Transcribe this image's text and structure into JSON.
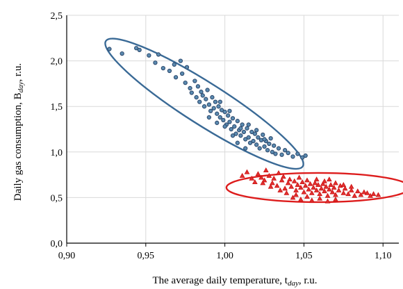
{
  "chart_data": {
    "type": "scatter",
    "title": "",
    "xlabel": "The average daily temperature, t",
    "xlabel_sub": "day",
    "xlabel_unit": ", r.u.",
    "ylabel": "Daily gas consumption, B",
    "ylabel_sub": "day",
    "ylabel_unit": ", r.u.",
    "xlim": [
      0.9,
      1.11
    ],
    "ylim": [
      0.0,
      2.5
    ],
    "xticks": [
      "0,90",
      "0,95",
      "1,00",
      "1,05",
      "1,10"
    ],
    "xtick_values": [
      0.9,
      0.95,
      1.0,
      1.05,
      1.1
    ],
    "yticks": [
      "0,0",
      "0,5",
      "1,0",
      "1,5",
      "2,0",
      "2,5"
    ],
    "ytick_values": [
      0.0,
      0.5,
      1.0,
      1.5,
      2.0,
      2.5
    ],
    "grid": true,
    "series": [
      {
        "marker": "circle",
        "color": "#2e4a6e",
        "fill": "#5b8bb0",
        "points": [
          [
            0.927,
            2.13
          ],
          [
            0.935,
            2.08
          ],
          [
            0.944,
            2.14
          ],
          [
            0.946,
            2.12
          ],
          [
            0.952,
            2.06
          ],
          [
            0.958,
            2.07
          ],
          [
            0.956,
            1.98
          ],
          [
            0.961,
            1.92
          ],
          [
            0.965,
            1.89
          ],
          [
            0.968,
            1.96
          ],
          [
            0.969,
            1.82
          ],
          [
            0.972,
            2.0
          ],
          [
            0.973,
            1.86
          ],
          [
            0.975,
            1.76
          ],
          [
            0.976,
            1.93
          ],
          [
            0.978,
            1.7
          ],
          [
            0.979,
            1.65
          ],
          [
            0.981,
            1.78
          ],
          [
            0.982,
            1.6
          ],
          [
            0.983,
            1.72
          ],
          [
            0.984,
            1.55
          ],
          [
            0.985,
            1.66
          ],
          [
            0.986,
            1.62
          ],
          [
            0.987,
            1.5
          ],
          [
            0.988,
            1.58
          ],
          [
            0.989,
            1.68
          ],
          [
            0.99,
            1.52
          ],
          [
            0.991,
            1.45
          ],
          [
            0.992,
            1.6
          ],
          [
            0.993,
            1.48
          ],
          [
            0.994,
            1.55
          ],
          [
            0.995,
            1.42
          ],
          [
            0.996,
            1.5
          ],
          [
            0.997,
            1.38
          ],
          [
            0.998,
            1.46
          ],
          [
            0.999,
            1.35
          ],
          [
            1.0,
            1.44
          ],
          [
            1.001,
            1.3
          ],
          [
            1.002,
            1.4
          ],
          [
            1.003,
            1.33
          ],
          [
            1.004,
            1.25
          ],
          [
            1.005,
            1.37
          ],
          [
            1.006,
            1.28
          ],
          [
            1.007,
            1.2
          ],
          [
            1.008,
            1.34
          ],
          [
            1.009,
            1.24
          ],
          [
            1.01,
            1.18
          ],
          [
            1.011,
            1.3
          ],
          [
            1.012,
            1.22
          ],
          [
            1.013,
            1.14
          ],
          [
            1.014,
            1.26
          ],
          [
            1.015,
            1.16
          ],
          [
            1.016,
            1.1
          ],
          [
            1.017,
            1.22
          ],
          [
            1.018,
            1.12
          ],
          [
            1.019,
            1.2
          ],
          [
            1.02,
            1.08
          ],
          [
            1.021,
            1.16
          ],
          [
            1.022,
            1.04
          ],
          [
            1.023,
            1.13
          ],
          [
            1.024,
            1.19
          ],
          [
            1.025,
            1.06
          ],
          [
            1.026,
            1.12
          ],
          [
            1.027,
            1.02
          ],
          [
            1.028,
            1.09
          ],
          [
            1.029,
            1.15
          ],
          [
            1.03,
            1.0
          ],
          [
            1.031,
            1.07
          ],
          [
            1.032,
            0.98
          ],
          [
            1.034,
            1.04
          ],
          [
            1.036,
            0.97
          ],
          [
            1.038,
            1.02
          ],
          [
            1.04,
            0.99
          ],
          [
            1.043,
            0.95
          ],
          [
            1.046,
            0.98
          ],
          [
            1.049,
            0.94
          ],
          [
            1.051,
            0.96
          ],
          [
            0.99,
            1.38
          ],
          [
            0.995,
            1.32
          ],
          [
            1.0,
            1.28
          ],
          [
            1.005,
            1.18
          ],
          [
            1.01,
            1.26
          ],
          [
            1.015,
            1.3
          ],
          [
            1.02,
            1.24
          ],
          [
            1.025,
            1.14
          ],
          [
            1.003,
            1.45
          ],
          [
            0.997,
            1.55
          ],
          [
            1.008,
            1.1
          ],
          [
            1.013,
            1.04
          ]
        ]
      },
      {
        "marker": "triangle",
        "color": "#cc1111",
        "fill": "#e03030",
        "points": [
          [
            1.011,
            0.74
          ],
          [
            1.014,
            0.78
          ],
          [
            1.017,
            0.71
          ],
          [
            1.019,
            0.67
          ],
          [
            1.021,
            0.76
          ],
          [
            1.023,
            0.72
          ],
          [
            1.025,
            0.69
          ],
          [
            1.026,
            0.8
          ],
          [
            1.028,
            0.74
          ],
          [
            1.03,
            0.66
          ],
          [
            1.031,
            0.71
          ],
          [
            1.033,
            0.63
          ],
          [
            1.034,
            0.77
          ],
          [
            1.036,
            0.69
          ],
          [
            1.037,
            0.73
          ],
          [
            1.038,
            0.6
          ],
          [
            1.04,
            0.66
          ],
          [
            1.041,
            0.7
          ],
          [
            1.042,
            0.62
          ],
          [
            1.044,
            0.68
          ],
          [
            1.045,
            0.58
          ],
          [
            1.046,
            0.64
          ],
          [
            1.047,
            0.72
          ],
          [
            1.048,
            0.61
          ],
          [
            1.049,
            0.67
          ],
          [
            1.05,
            0.56
          ],
          [
            1.051,
            0.63
          ],
          [
            1.052,
            0.69
          ],
          [
            1.053,
            0.59
          ],
          [
            1.054,
            0.65
          ],
          [
            1.055,
            0.55
          ],
          [
            1.056,
            0.61
          ],
          [
            1.057,
            0.66
          ],
          [
            1.058,
            0.58
          ],
          [
            1.059,
            0.64
          ],
          [
            1.06,
            0.54
          ],
          [
            1.061,
            0.6
          ],
          [
            1.062,
            0.65
          ],
          [
            1.063,
            0.57
          ],
          [
            1.064,
            0.62
          ],
          [
            1.065,
            0.52
          ],
          [
            1.066,
            0.59
          ],
          [
            1.067,
            0.64
          ],
          [
            1.068,
            0.56
          ],
          [
            1.069,
            0.61
          ],
          [
            1.07,
            0.53
          ],
          [
            1.072,
            0.58
          ],
          [
            1.073,
            0.63
          ],
          [
            1.075,
            0.55
          ],
          [
            1.076,
            0.6
          ],
          [
            1.078,
            0.54
          ],
          [
            1.08,
            0.58
          ],
          [
            1.082,
            0.52
          ],
          [
            1.084,
            0.57
          ],
          [
            1.086,
            0.53
          ],
          [
            1.088,
            0.56
          ],
          [
            1.09,
            0.55
          ],
          [
            1.092,
            0.52
          ],
          [
            1.094,
            0.54
          ],
          [
            1.097,
            0.53
          ],
          [
            1.043,
            0.5
          ],
          [
            1.048,
            0.48
          ],
          [
            1.055,
            0.47
          ],
          [
            1.06,
            0.49
          ],
          [
            1.065,
            0.46
          ],
          [
            1.07,
            0.48
          ],
          [
            1.058,
            0.7
          ],
          [
            1.063,
            0.68
          ],
          [
            1.066,
            0.7
          ],
          [
            1.07,
            0.66
          ],
          [
            1.075,
            0.64
          ],
          [
            1.08,
            0.62
          ],
          [
            1.024,
            0.66
          ],
          [
            1.029,
            0.62
          ],
          [
            1.035,
            0.58
          ],
          [
            1.039,
            0.55
          ],
          [
            1.045,
            0.53
          ],
          [
            1.052,
            0.51
          ]
        ]
      }
    ],
    "ellipses": [
      {
        "series": 0,
        "color": "#3a6a96",
        "cx": 0.987,
        "cy": 1.53,
        "rx": 0.066,
        "ry": 0.075,
        "angle_deg": -34
      },
      {
        "series": 1,
        "color": "#dd1c1c",
        "cx": 1.059,
        "cy": 0.61,
        "rx": 0.058,
        "ry": 0.16,
        "angle_deg": -1
      }
    ]
  }
}
